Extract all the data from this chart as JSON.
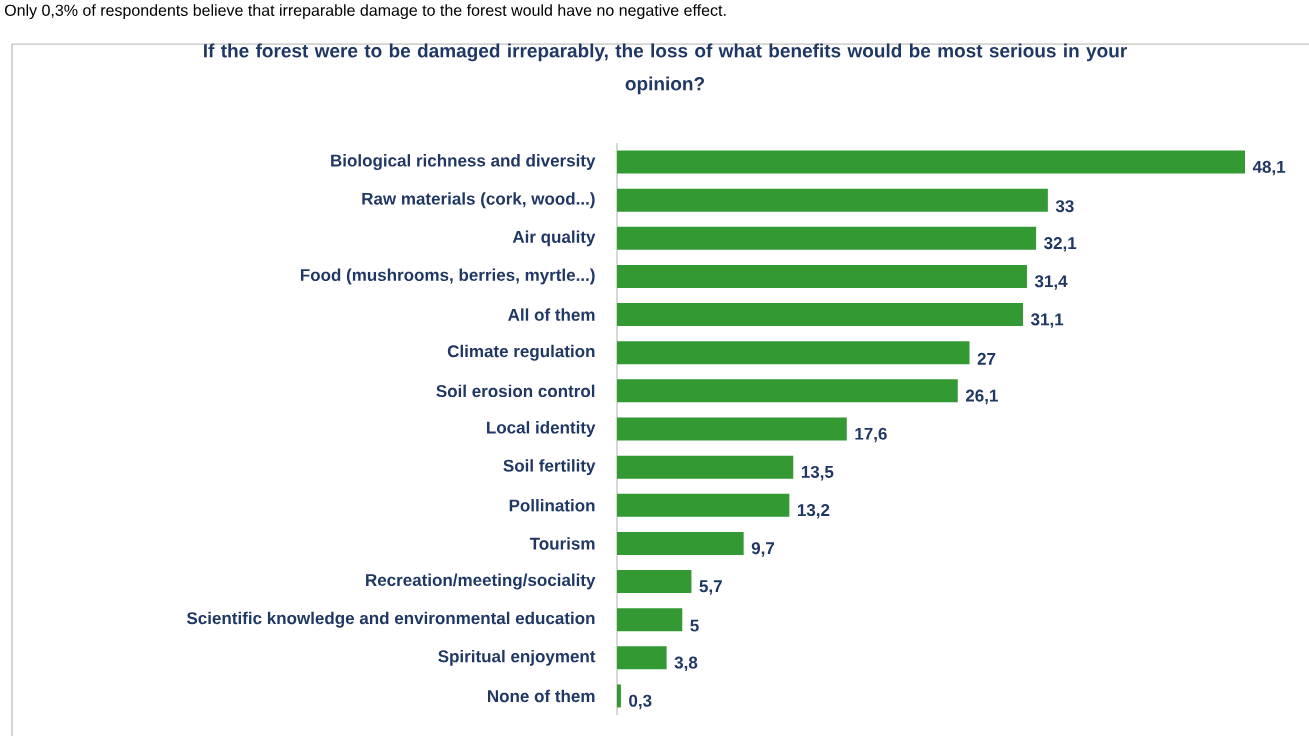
{
  "chart_data": {
    "type": "bar",
    "orientation": "horizontal",
    "title": "If the forest were to be damaged irreparably, the loss of what benefits would be most serious in your opinion?",
    "annotations": [
      "Only 0,3% of respondents believe that irreparable damage to the forest would have no negative effect."
    ],
    "categories": [
      "Biological richness and diversity",
      "Raw materials (cork, wood...)",
      "Air quality",
      "Food (mushrooms, berries, myrtle...)",
      "All of them",
      "Climate regulation",
      "Soil erosion control",
      "Local identity",
      "Soil fertility",
      "Pollination",
      "Tourism",
      "Recreation/meeting/sociality",
      "Scientific knowledge and environmental education",
      "Spiritual enjoyment",
      "None of them"
    ],
    "values": [
      48.1,
      33,
      32.1,
      31.4,
      31.1,
      27,
      26.1,
      17.6,
      13.5,
      13.2,
      9.7,
      5.7,
      5,
      3.8,
      0.3
    ],
    "value_labels": [
      "48,1",
      "33",
      "32,1",
      "31,4",
      "31,1",
      "27",
      "26,1",
      "17,6",
      "13,5",
      "13,2",
      "9,7",
      "5,7",
      "5",
      "3,8",
      "0,3"
    ],
    "color": "#339933"
  }
}
